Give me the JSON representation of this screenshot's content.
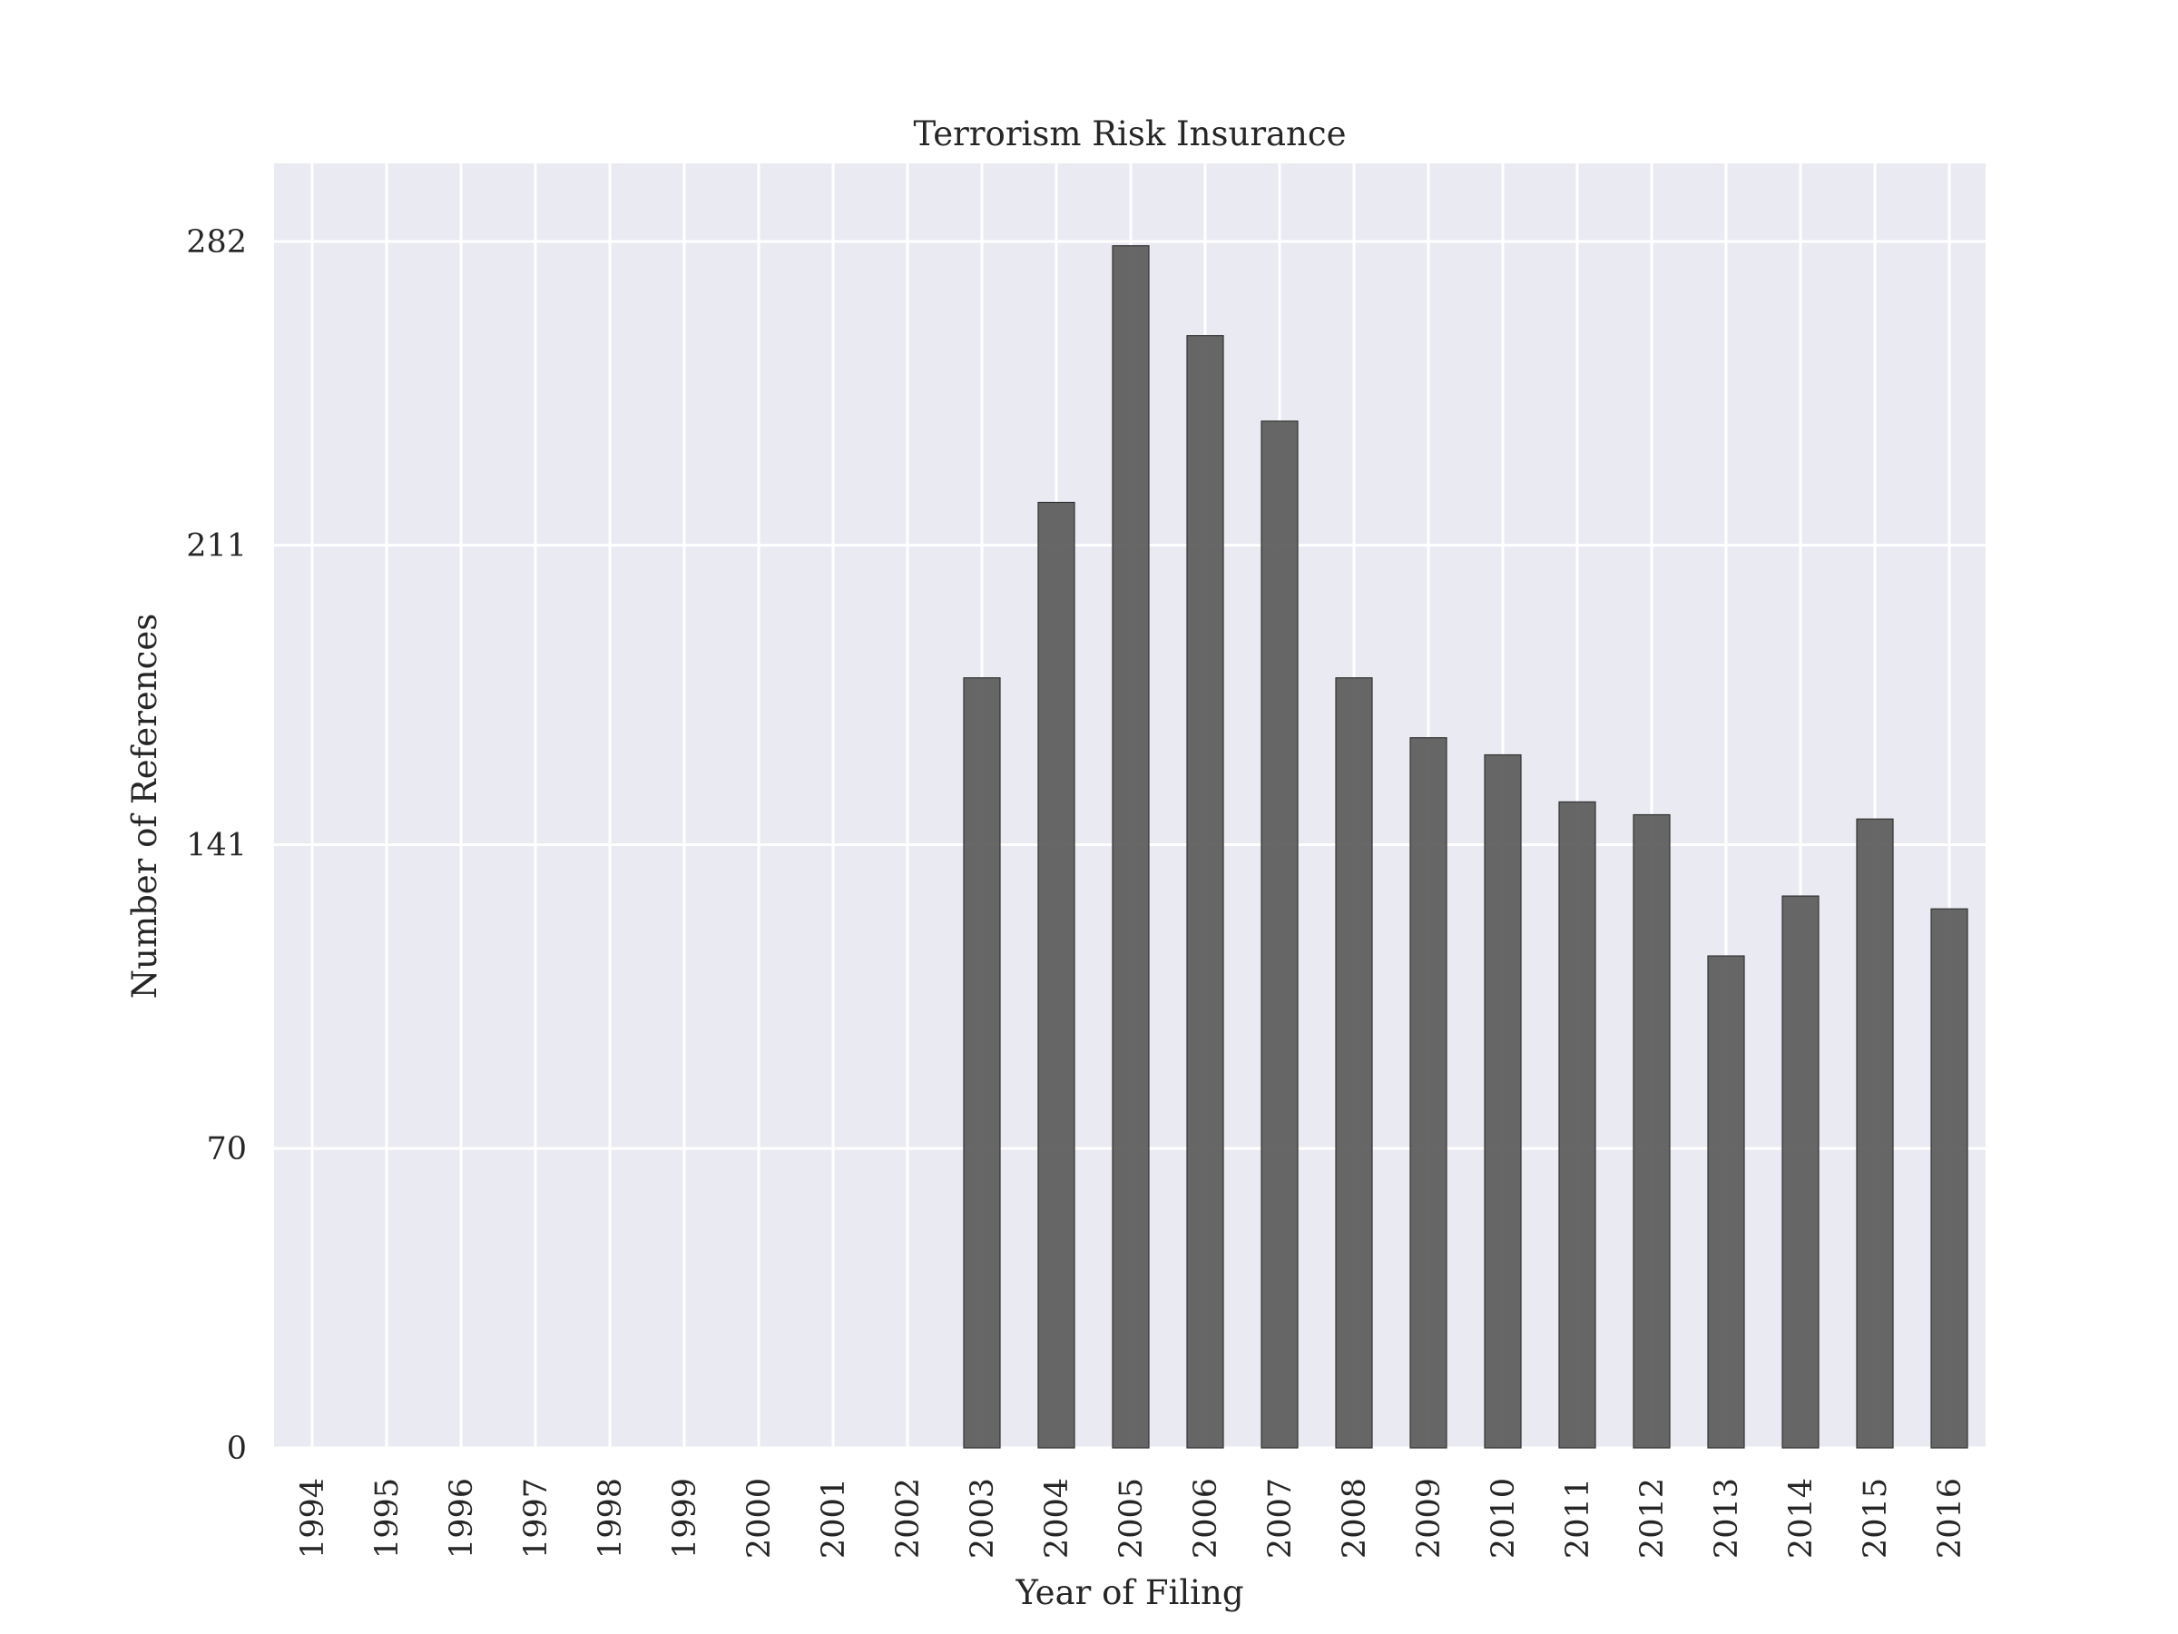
{
  "chart_data": {
    "type": "bar",
    "title": "Terrorism Risk Insurance",
    "xlabel": "Year of Filing",
    "ylabel": "Number of References",
    "categories": [
      "1994",
      "1995",
      "1996",
      "1997",
      "1998",
      "1999",
      "2000",
      "2001",
      "2002",
      "2003",
      "2004",
      "2005",
      "2006",
      "2007",
      "2008",
      "2009",
      "2010",
      "2011",
      "2012",
      "2013",
      "2014",
      "2015",
      "2016"
    ],
    "values": [
      0,
      0,
      0,
      0,
      0,
      0,
      0,
      0,
      0,
      180,
      221,
      281,
      260,
      240,
      180,
      166,
      162,
      151,
      148,
      115,
      129,
      147,
      126
    ],
    "yticks": [
      0,
      70,
      141,
      211,
      282
    ],
    "ylim": [
      0,
      300
    ],
    "grid": true,
    "background_color": "#eaeaf2",
    "bar_color": "#5a5a5a",
    "grid_color": "#ffffff"
  }
}
